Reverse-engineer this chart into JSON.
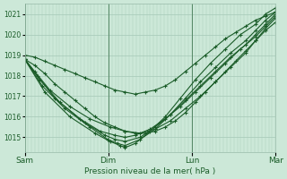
{
  "xlabel": "Pression niveau de la mer( hPa )",
  "ylim": [
    1014.3,
    1021.5
  ],
  "yticks": [
    1015,
    1016,
    1017,
    1018,
    1019,
    1020,
    1021
  ],
  "xtick_labels": [
    "Sam",
    "Dim",
    "Lun",
    "Mar"
  ],
  "xtick_positions": [
    0,
    0.333,
    0.667,
    1.0
  ],
  "bg_color": "#cce8d8",
  "grid_color": "#aaccbb",
  "line_color": "#1a5c28",
  "marker": "+",
  "series": [
    {
      "points_x": [
        0,
        0.04,
        0.08,
        0.12,
        0.16,
        0.2,
        0.24,
        0.28,
        0.32,
        0.36,
        0.4,
        0.44,
        0.48,
        0.52,
        0.56,
        0.6,
        0.64,
        0.68,
        0.72,
        0.76,
        0.8,
        0.84,
        0.88,
        0.92,
        0.96,
        1.0
      ],
      "points_y": [
        1018.8,
        1018.5,
        1018.1,
        1017.6,
        1017.2,
        1016.8,
        1016.4,
        1016.0,
        1015.7,
        1015.5,
        1015.3,
        1015.2,
        1015.2,
        1015.3,
        1015.5,
        1015.8,
        1016.2,
        1016.7,
        1017.2,
        1017.7,
        1018.2,
        1018.7,
        1019.2,
        1019.7,
        1020.2,
        1020.6
      ]
    },
    {
      "points_x": [
        0,
        0.04,
        0.1,
        0.18,
        0.26,
        0.34,
        0.4,
        0.46,
        0.52,
        0.58,
        0.64,
        0.7,
        0.76,
        0.82,
        0.88,
        0.92,
        0.96,
        1.0
      ],
      "points_y": [
        1018.8,
        1018.2,
        1017.3,
        1016.5,
        1015.9,
        1015.5,
        1015.3,
        1015.2,
        1015.4,
        1015.8,
        1016.4,
        1017.0,
        1017.7,
        1018.4,
        1019.1,
        1019.7,
        1020.3,
        1020.8
      ]
    },
    {
      "points_x": [
        0,
        0.05,
        0.12,
        0.22,
        0.3,
        0.36,
        0.4,
        0.44,
        0.5,
        0.56,
        0.62,
        0.68,
        0.74,
        0.8,
        0.86,
        0.92,
        0.96,
        1.0
      ],
      "points_y": [
        1018.8,
        1018.0,
        1016.9,
        1015.9,
        1015.3,
        1015.1,
        1015.0,
        1015.1,
        1015.4,
        1015.9,
        1016.5,
        1017.2,
        1017.9,
        1018.6,
        1019.3,
        1019.9,
        1020.4,
        1020.9
      ]
    },
    {
      "points_x": [
        0,
        0.06,
        0.14,
        0.24,
        0.32,
        0.36,
        0.4,
        0.46,
        0.52,
        0.58,
        0.64,
        0.7,
        0.76,
        0.82,
        0.88,
        0.92,
        0.96,
        1.0
      ],
      "points_y": [
        1018.8,
        1017.8,
        1016.7,
        1015.7,
        1015.1,
        1014.9,
        1014.8,
        1015.0,
        1015.5,
        1016.1,
        1016.8,
        1017.5,
        1018.2,
        1018.9,
        1019.5,
        1020.0,
        1020.5,
        1021.0
      ]
    },
    {
      "points_x": [
        0,
        0.07,
        0.16,
        0.26,
        0.33,
        0.37,
        0.4,
        0.46,
        0.52,
        0.58,
        0.64,
        0.7,
        0.76,
        0.82,
        0.88,
        0.92,
        0.96,
        1.0
      ],
      "points_y": [
        1018.8,
        1017.5,
        1016.4,
        1015.5,
        1014.9,
        1014.7,
        1014.6,
        1014.9,
        1015.4,
        1016.1,
        1016.9,
        1017.7,
        1018.4,
        1019.1,
        1019.7,
        1020.2,
        1020.7,
        1021.1
      ]
    },
    {
      "points_x": [
        0,
        0.08,
        0.18,
        0.28,
        0.34,
        0.38,
        0.4,
        0.44,
        0.5,
        0.56,
        0.62,
        0.68,
        0.74,
        0.8,
        0.86,
        0.92,
        0.96,
        1.0
      ],
      "points_y": [
        1018.8,
        1017.2,
        1016.0,
        1015.2,
        1014.8,
        1014.6,
        1014.5,
        1014.7,
        1015.3,
        1016.0,
        1016.9,
        1017.8,
        1018.6,
        1019.3,
        1020.0,
        1020.5,
        1021.0,
        1021.3
      ]
    },
    {
      "points_x": [
        0,
        0.04,
        0.08,
        0.12,
        0.16,
        0.2,
        0.24,
        0.28,
        0.32,
        0.36,
        0.4,
        0.44,
        0.48,
        0.52,
        0.56,
        0.6,
        0.64,
        0.68,
        0.72,
        0.76,
        0.8,
        0.84,
        0.88,
        0.92,
        0.96,
        1.0
      ],
      "points_y": [
        1019.0,
        1018.9,
        1018.7,
        1018.5,
        1018.3,
        1018.1,
        1017.9,
        1017.7,
        1017.5,
        1017.3,
        1017.2,
        1017.1,
        1017.2,
        1017.3,
        1017.5,
        1017.8,
        1018.2,
        1018.6,
        1019.0,
        1019.4,
        1019.8,
        1020.1,
        1020.4,
        1020.7,
        1020.9,
        1021.1
      ]
    }
  ]
}
